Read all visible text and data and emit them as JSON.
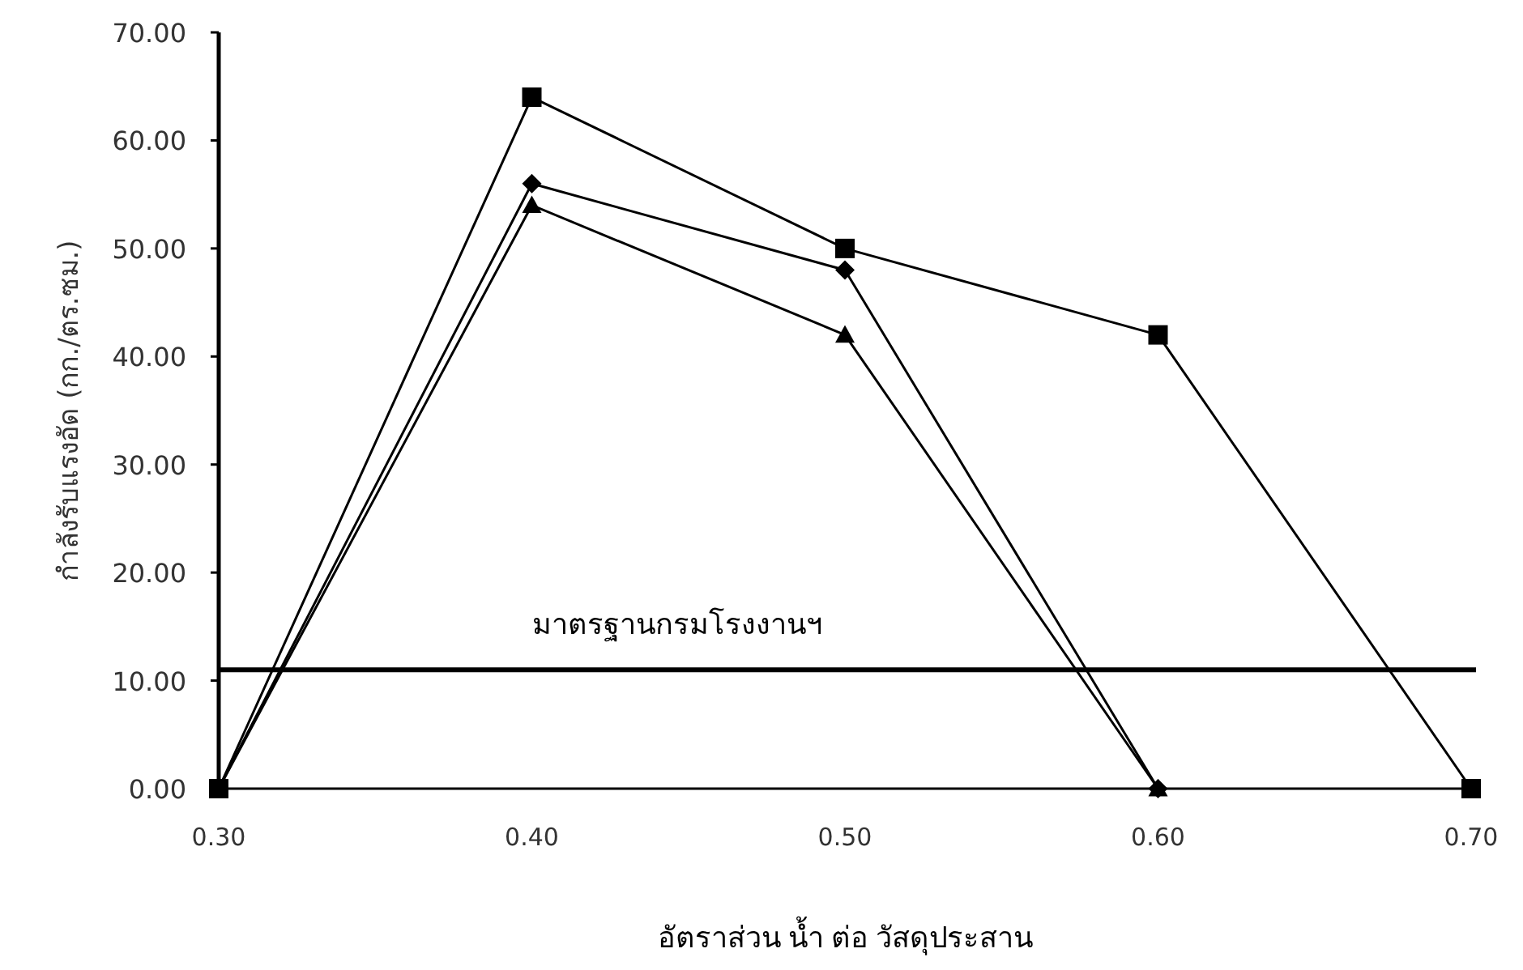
{
  "chart_data": {
    "type": "line",
    "xlabel": "อัตราส่วน น้ำ ต่อ วัสดุประสาน",
    "ylabel": "กำลังรับแรงอัด (กก./ตร.ซม.)",
    "x": [
      0.3,
      0.4,
      0.5,
      0.6,
      0.7
    ],
    "series": [
      {
        "color": "#000000",
        "marker": "square",
        "values": [
          0,
          64,
          50,
          42,
          0
        ]
      },
      {
        "color": "#000000",
        "marker": "diamond",
        "values": [
          0,
          56,
          48,
          0,
          null
        ]
      },
      {
        "color": "#000000",
        "marker": "triangle",
        "values": [
          0,
          54,
          42,
          0,
          null
        ]
      }
    ],
    "xlim": [
      0.3,
      0.7
    ],
    "xticks": [
      {
        "value": 0.3,
        "label": "0.30"
      },
      {
        "value": 0.4,
        "label": "0.40"
      },
      {
        "value": 0.5,
        "label": "0.50"
      },
      {
        "value": 0.6,
        "label": "0.60"
      },
      {
        "value": 0.7,
        "label": "0.70"
      }
    ],
    "ylim": [
      0,
      70
    ],
    "yticks": [
      {
        "value": 0,
        "label": "0.00"
      },
      {
        "value": 10,
        "label": "10.00"
      },
      {
        "value": 20,
        "label": "20.00"
      },
      {
        "value": 30,
        "label": "30.00"
      },
      {
        "value": 40,
        "label": "40.00"
      },
      {
        "value": 50,
        "label": "50.00"
      },
      {
        "value": 60,
        "label": "60.00"
      },
      {
        "value": 70,
        "label": "70.00"
      }
    ],
    "ref_lines": [
      {
        "axis": "y",
        "value": 11,
        "label": "มาตรฐานกรมโรงงานฯ",
        "color": "#000000",
        "line_style": "solid"
      }
    ],
    "line_style": "solid"
  }
}
